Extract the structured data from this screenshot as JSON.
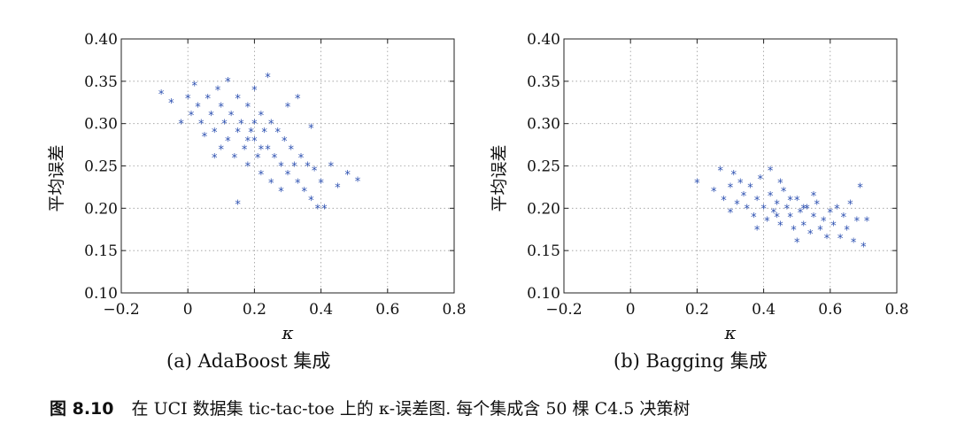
{
  "chart_data": [
    {
      "type": "scatter",
      "panel": "left",
      "xlabel": "κ",
      "ylabel": "平均误差",
      "xlim": [
        -0.2,
        0.8
      ],
      "ylim": [
        0.1,
        0.4
      ],
      "xticks": [
        "−0.2",
        "0",
        "0.2",
        "0.4",
        "0.6",
        "0.8"
      ],
      "yticks": [
        "0.10",
        "0.15",
        "0.20",
        "0.25",
        "0.30",
        "0.35",
        "0.40"
      ],
      "grid": true,
      "marker": "*",
      "color": "#2b4fb0",
      "subcaption": "(a) AdaBoost 集成",
      "points": [
        [
          -0.08,
          0.335
        ],
        [
          -0.05,
          0.325
        ],
        [
          -0.02,
          0.3
        ],
        [
          0,
          0.33
        ],
        [
          0.01,
          0.31
        ],
        [
          0.02,
          0.345
        ],
        [
          0.03,
          0.32
        ],
        [
          0.04,
          0.3
        ],
        [
          0.05,
          0.285
        ],
        [
          0.06,
          0.33
        ],
        [
          0.07,
          0.31
        ],
        [
          0.08,
          0.29
        ],
        [
          0.09,
          0.34
        ],
        [
          0.1,
          0.32
        ],
        [
          0.1,
          0.27
        ],
        [
          0.11,
          0.3
        ],
        [
          0.12,
          0.35
        ],
        [
          0.12,
          0.28
        ],
        [
          0.13,
          0.31
        ],
        [
          0.14,
          0.26
        ],
        [
          0.15,
          0.33
        ],
        [
          0.15,
          0.29
        ],
        [
          0.16,
          0.3
        ],
        [
          0.17,
          0.27
        ],
        [
          0.18,
          0.32
        ],
        [
          0.18,
          0.25
        ],
        [
          0.19,
          0.29
        ],
        [
          0.2,
          0.34
        ],
        [
          0.2,
          0.28
        ],
        [
          0.21,
          0.26
        ],
        [
          0.22,
          0.31
        ],
        [
          0.22,
          0.24
        ],
        [
          0.23,
          0.29
        ],
        [
          0.24,
          0.27
        ],
        [
          0.25,
          0.3
        ],
        [
          0.25,
          0.23
        ],
        [
          0.26,
          0.26
        ],
        [
          0.27,
          0.29
        ],
        [
          0.28,
          0.25
        ],
        [
          0.28,
          0.22
        ],
        [
          0.29,
          0.28
        ],
        [
          0.3,
          0.32
        ],
        [
          0.3,
          0.24
        ],
        [
          0.31,
          0.27
        ],
        [
          0.32,
          0.25
        ],
        [
          0.33,
          0.23
        ],
        [
          0.34,
          0.26
        ],
        [
          0.35,
          0.22
        ],
        [
          0.36,
          0.25
        ],
        [
          0.37,
          0.21
        ],
        [
          0.38,
          0.245
        ],
        [
          0.39,
          0.2
        ],
        [
          0.4,
          0.23
        ],
        [
          0.41,
          0.2
        ],
        [
          0.43,
          0.25
        ],
        [
          0.45,
          0.225
        ],
        [
          0.48,
          0.24
        ],
        [
          0.51,
          0.232
        ],
        [
          0.37,
          0.295
        ],
        [
          0.33,
          0.33
        ],
        [
          0.24,
          0.355
        ],
        [
          0.15,
          0.205
        ],
        [
          0.08,
          0.26
        ],
        [
          0.2,
          0.3
        ],
        [
          0.18,
          0.28
        ],
        [
          0.22,
          0.27
        ]
      ]
    },
    {
      "type": "scatter",
      "panel": "right",
      "xlabel": "κ",
      "ylabel": "平均误差",
      "xlim": [
        -0.2,
        0.8
      ],
      "ylim": [
        0.1,
        0.4
      ],
      "xticks": [
        "−0.2",
        "0",
        "0.2",
        "0.4",
        "0.6",
        "0.8"
      ],
      "yticks": [
        "0.10",
        "0.15",
        "0.20",
        "0.25",
        "0.30",
        "0.35",
        "0.40"
      ],
      "grid": true,
      "marker": "*",
      "color": "#2b4fb0",
      "subcaption": "(b) Bagging 集成",
      "points": [
        [
          0.2,
          0.23
        ],
        [
          0.25,
          0.22
        ],
        [
          0.27,
          0.245
        ],
        [
          0.28,
          0.21
        ],
        [
          0.3,
          0.225
        ],
        [
          0.31,
          0.24
        ],
        [
          0.32,
          0.205
        ],
        [
          0.33,
          0.23
        ],
        [
          0.34,
          0.215
        ],
        [
          0.35,
          0.2
        ],
        [
          0.36,
          0.225
        ],
        [
          0.37,
          0.19
        ],
        [
          0.38,
          0.21
        ],
        [
          0.39,
          0.235
        ],
        [
          0.4,
          0.2
        ],
        [
          0.41,
          0.185
        ],
        [
          0.42,
          0.245
        ],
        [
          0.42,
          0.215
        ],
        [
          0.43,
          0.195
        ],
        [
          0.44,
          0.205
        ],
        [
          0.45,
          0.18
        ],
        [
          0.46,
          0.22
        ],
        [
          0.47,
          0.2
        ],
        [
          0.48,
          0.19
        ],
        [
          0.49,
          0.175
        ],
        [
          0.5,
          0.21
        ],
        [
          0.51,
          0.195
        ],
        [
          0.52,
          0.18
        ],
        [
          0.53,
          0.2
        ],
        [
          0.54,
          0.17
        ],
        [
          0.55,
          0.19
        ],
        [
          0.56,
          0.205
        ],
        [
          0.57,
          0.175
        ],
        [
          0.58,
          0.185
        ],
        [
          0.59,
          0.165
        ],
        [
          0.6,
          0.195
        ],
        [
          0.61,
          0.18
        ],
        [
          0.62,
          0.2
        ],
        [
          0.63,
          0.165
        ],
        [
          0.64,
          0.19
        ],
        [
          0.65,
          0.175
        ],
        [
          0.66,
          0.205
        ],
        [
          0.67,
          0.16
        ],
        [
          0.68,
          0.185
        ],
        [
          0.7,
          0.155
        ],
        [
          0.71,
          0.185
        ],
        [
          0.69,
          0.225
        ],
        [
          0.45,
          0.23
        ],
        [
          0.38,
          0.175
        ],
        [
          0.5,
          0.16
        ],
        [
          0.3,
          0.195
        ],
        [
          0.55,
          0.215
        ],
        [
          0.48,
          0.21
        ],
        [
          0.44,
          0.19
        ],
        [
          0.52,
          0.2
        ]
      ]
    }
  ],
  "caption": {
    "figure_no": "图 8.10",
    "text": "在 UCI 数据集 tic-tac-toe 上的 κ-误差图. 每个集成含 50 棵 C4.5 决策树"
  }
}
